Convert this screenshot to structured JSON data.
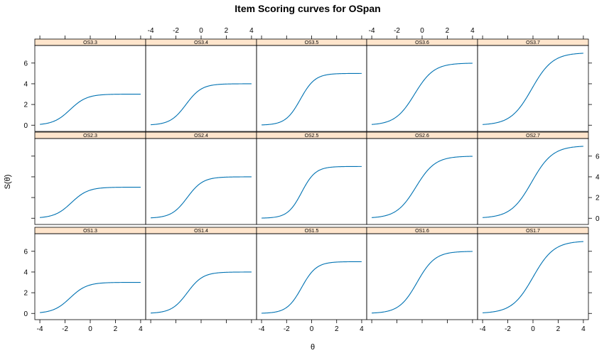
{
  "chart_data": {
    "type": "line",
    "title": "Item Scoring curves for OSpan",
    "xlabel": "θ",
    "ylabel": "S(θ)",
    "xlim": [
      -4.4,
      4.4
    ],
    "ylim": [
      -0.6,
      7.7
    ],
    "x_ticks": [
      -4,
      -2,
      0,
      2,
      4
    ],
    "y_ticks": [
      0,
      2,
      4,
      6
    ],
    "grid": false,
    "line_color": "#0072B2",
    "strip_color": "#FFE5CC",
    "rows": [
      {
        "panels": [
          {
            "label": "OS3.3",
            "max": 3,
            "a": 1.5,
            "b": -1.6
          },
          {
            "label": "OS3.4",
            "max": 4,
            "a": 1.6,
            "b": -1.2
          },
          {
            "label": "OS3.5",
            "max": 5,
            "a": 1.7,
            "b": -0.9
          },
          {
            "label": "OS3.6",
            "max": 6,
            "a": 1.3,
            "b": -0.6
          },
          {
            "label": "OS3.7",
            "max": 7,
            "a": 1.2,
            "b": -0.1
          }
        ]
      },
      {
        "panels": [
          {
            "label": "OS2.3",
            "max": 3,
            "a": 1.5,
            "b": -1.5
          },
          {
            "label": "OS2.4",
            "max": 4,
            "a": 1.6,
            "b": -1.1
          },
          {
            "label": "OS2.5",
            "max": 5,
            "a": 1.8,
            "b": -0.8
          },
          {
            "label": "OS2.6",
            "max": 6,
            "a": 1.3,
            "b": -0.5
          },
          {
            "label": "OS2.7",
            "max": 7,
            "a": 1.2,
            "b": -0.1
          }
        ]
      },
      {
        "panels": [
          {
            "label": "OS1.3",
            "max": 3,
            "a": 1.5,
            "b": -1.6
          },
          {
            "label": "OS1.4",
            "max": 4,
            "a": 1.6,
            "b": -1.1
          },
          {
            "label": "OS1.5",
            "max": 5,
            "a": 1.7,
            "b": -0.8
          },
          {
            "label": "OS1.6",
            "max": 6,
            "a": 1.4,
            "b": -0.4
          },
          {
            "label": "OS1.7",
            "max": 7,
            "a": 1.2,
            "b": 0.0
          }
        ]
      }
    ]
  }
}
